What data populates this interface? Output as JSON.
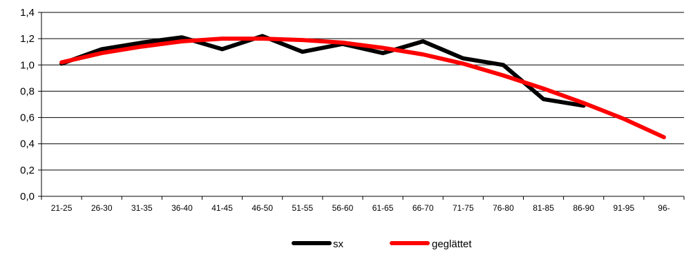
{
  "chart_data": {
    "type": "line",
    "categories": [
      "21-25",
      "26-30",
      "31-35",
      "36-40",
      "41-45",
      "46-50",
      "51-55",
      "56-60",
      "61-65",
      "66-70",
      "71-75",
      "76-80",
      "81-85",
      "86-90",
      "91-95",
      "96-"
    ],
    "ylim": [
      0,
      1.4
    ],
    "yticks": [
      "0,0",
      "0,2",
      "0,4",
      "0,6",
      "0,8",
      "1,0",
      "1,2",
      "1,4"
    ],
    "ytick_values": [
      0,
      0.2,
      0.4,
      0.6,
      0.8,
      1.0,
      1.2,
      1.4
    ],
    "grid": true,
    "legend_position": "bottom",
    "series": [
      {
        "name": "sx",
        "color": "#000000",
        "values": [
          1.01,
          1.12,
          1.17,
          1.21,
          1.12,
          1.22,
          1.1,
          1.16,
          1.09,
          1.18,
          1.05,
          1.0,
          0.74,
          0.69,
          null,
          null
        ]
      },
      {
        "name": "geglättet",
        "color": "#ff0000",
        "values": [
          1.02,
          1.09,
          1.14,
          1.18,
          1.2,
          1.2,
          1.19,
          1.17,
          1.13,
          1.08,
          1.01,
          0.92,
          0.82,
          0.71,
          0.59,
          0.45
        ]
      }
    ]
  }
}
